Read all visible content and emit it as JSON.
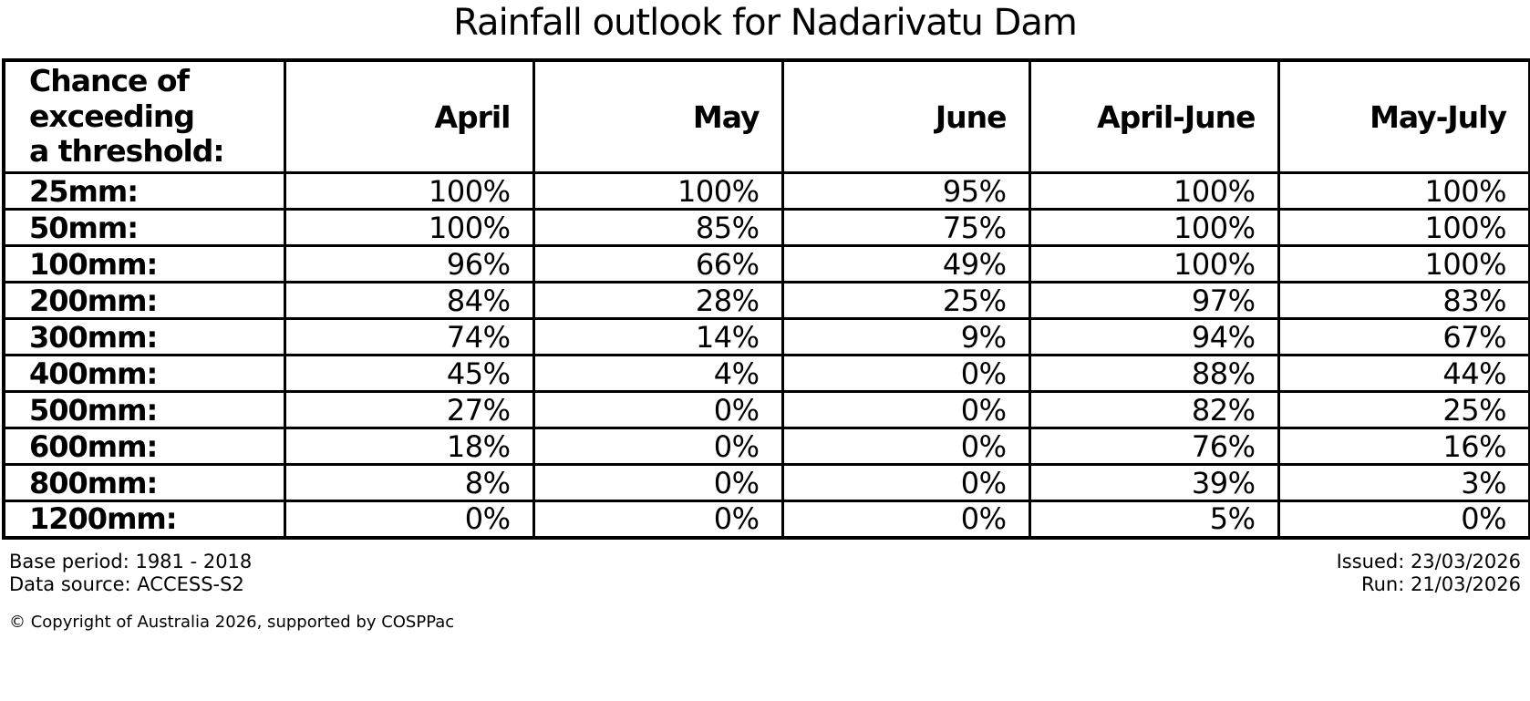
{
  "title": "Rainfall outlook for Nadarivatu Dam",
  "table": {
    "corner_header": "Chance of\nexceeding\na threshold:",
    "columns": [
      "April",
      "May",
      "June",
      "April-June",
      "May-July"
    ],
    "rows": [
      {
        "label": "25mm:",
        "values": [
          "100%",
          "100%",
          "95%",
          "100%",
          "100%"
        ]
      },
      {
        "label": "50mm:",
        "values": [
          "100%",
          "85%",
          "75%",
          "100%",
          "100%"
        ]
      },
      {
        "label": "100mm:",
        "values": [
          "96%",
          "66%",
          "49%",
          "100%",
          "100%"
        ]
      },
      {
        "label": "200mm:",
        "values": [
          "84%",
          "28%",
          "25%",
          "97%",
          "83%"
        ]
      },
      {
        "label": "300mm:",
        "values": [
          "74%",
          "14%",
          "9%",
          "94%",
          "67%"
        ]
      },
      {
        "label": "400mm:",
        "values": [
          "45%",
          "4%",
          "0%",
          "88%",
          "44%"
        ]
      },
      {
        "label": "500mm:",
        "values": [
          "27%",
          "0%",
          "0%",
          "82%",
          "25%"
        ]
      },
      {
        "label": "600mm:",
        "values": [
          "18%",
          "0%",
          "0%",
          "76%",
          "16%"
        ]
      },
      {
        "label": "800mm:",
        "values": [
          "8%",
          "0%",
          "0%",
          "39%",
          "3%"
        ]
      },
      {
        "label": "1200mm:",
        "values": [
          "0%",
          "0%",
          "0%",
          "5%",
          "0%"
        ]
      }
    ]
  },
  "footer": {
    "base_period": "Base period: 1981 - 2018",
    "data_source": "Data source: ACCESS-S2",
    "issued": "Issued: 23/03/2026",
    "run": "Run: 21/03/2026",
    "copyright": "© Copyright of Australia 2026, supported by COSPPac"
  },
  "colors": {
    "text": "#000000",
    "background": "#ffffff",
    "border": "#000000"
  },
  "chart_data": {
    "type": "table",
    "title": "Rainfall outlook for Nadarivatu Dam",
    "row_header": "Chance of exceeding a threshold:",
    "columns": [
      "April",
      "May",
      "June",
      "April-June",
      "May-July"
    ],
    "row_labels": [
      "25mm",
      "50mm",
      "100mm",
      "200mm",
      "300mm",
      "400mm",
      "500mm",
      "600mm",
      "800mm",
      "1200mm"
    ],
    "values_percent": [
      [
        100,
        100,
        95,
        100,
        100
      ],
      [
        100,
        85,
        75,
        100,
        100
      ],
      [
        96,
        66,
        49,
        100,
        100
      ],
      [
        84,
        28,
        25,
        97,
        83
      ],
      [
        74,
        14,
        9,
        94,
        67
      ],
      [
        45,
        4,
        0,
        88,
        44
      ],
      [
        27,
        0,
        0,
        82,
        25
      ],
      [
        18,
        0,
        0,
        76,
        16
      ],
      [
        8,
        0,
        0,
        39,
        3
      ],
      [
        0,
        0,
        0,
        5,
        0
      ]
    ],
    "notes": [
      "Base period: 1981 - 2018",
      "Data source: ACCESS-S2",
      "Issued: 23/03/2026",
      "Run: 21/03/2026",
      "© Copyright of Australia 2026, supported by COSPPac"
    ]
  }
}
